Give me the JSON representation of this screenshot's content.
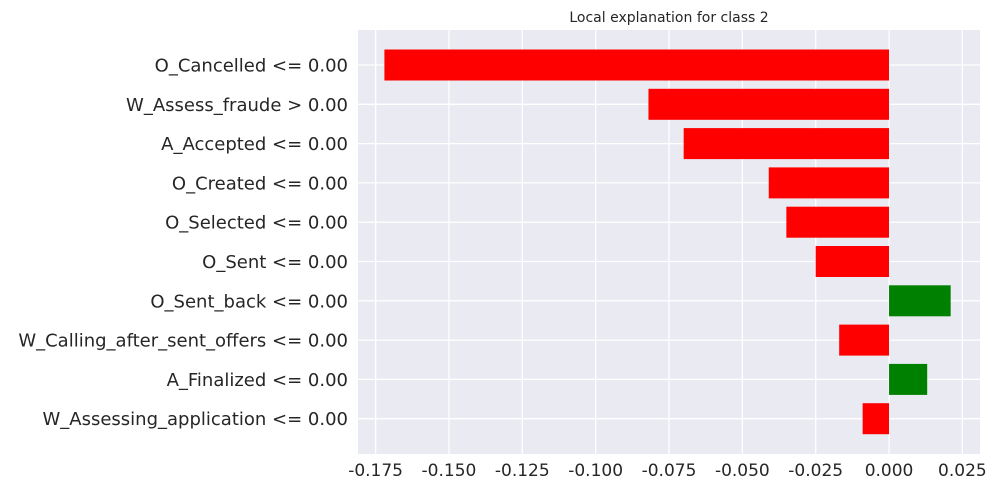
{
  "chart_data": {
    "type": "bar",
    "orientation": "horizontal",
    "title": "Local explanation for class 2",
    "xlabel": "",
    "ylabel": "",
    "xlim": [
      -0.181,
      0.031
    ],
    "grid": true,
    "x_ticks": [
      "-0.175",
      "-0.150",
      "-0.125",
      "-0.100",
      "-0.075",
      "-0.050",
      "-0.025",
      "0.000",
      "0.025"
    ],
    "x_tick_values": [
      -0.175,
      -0.15,
      -0.125,
      -0.1,
      -0.075,
      -0.05,
      -0.025,
      0.0,
      0.025
    ],
    "categories": [
      "O_Cancelled <= 0.00",
      "W_Assess_fraude > 0.00",
      "A_Accepted <= 0.00",
      "O_Created <= 0.00",
      "O_Selected <= 0.00",
      "O_Sent <= 0.00",
      "O_Sent_back <= 0.00",
      "W_Calling_after_sent_offers <= 0.00",
      "A_Finalized <= 0.00",
      "W_Assessing_application <= 0.00"
    ],
    "values": [
      -0.172,
      -0.082,
      -0.07,
      -0.041,
      -0.035,
      -0.025,
      0.021,
      -0.017,
      0.013,
      -0.009
    ],
    "colors": {
      "negative": "#ff0000",
      "positive": "#008000",
      "background": "#eaeaf2",
      "grid": "#ffffff"
    }
  }
}
